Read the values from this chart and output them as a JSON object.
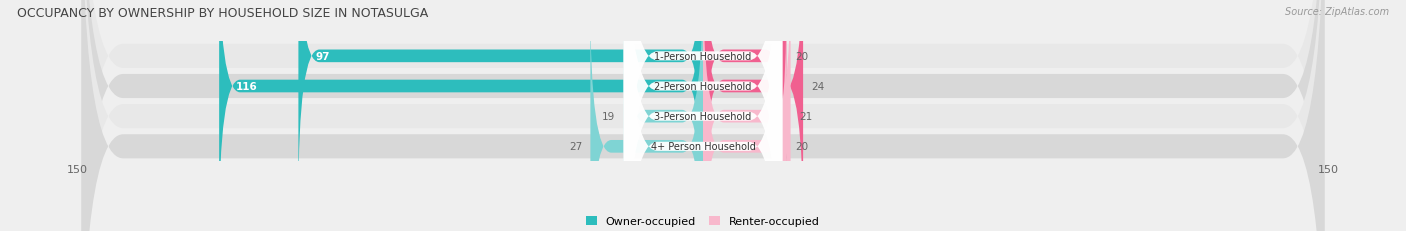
{
  "title": "OCCUPANCY BY OWNERSHIP BY HOUSEHOLD SIZE IN NOTASULGA",
  "source": "Source: ZipAtlas.com",
  "categories": [
    "1-Person Household",
    "2-Person Household",
    "3-Person Household",
    "4+ Person Household"
  ],
  "owner_values": [
    97,
    116,
    19,
    27
  ],
  "renter_values": [
    20,
    24,
    21,
    20
  ],
  "owner_color_strong": "#2dbdbd",
  "owner_color_light": "#7fd4d4",
  "renter_color_strong": "#f06090",
  "renter_color_light": "#f8b8cc",
  "axis_max": 150,
  "bg_color": "#efefef",
  "row_color_light": "#e8e8e8",
  "row_color_dark": "#d8d8d8",
  "title_color": "#444444",
  "label_color": "#555555",
  "value_color_inside": "#ffffff",
  "value_color_outside": "#666666"
}
